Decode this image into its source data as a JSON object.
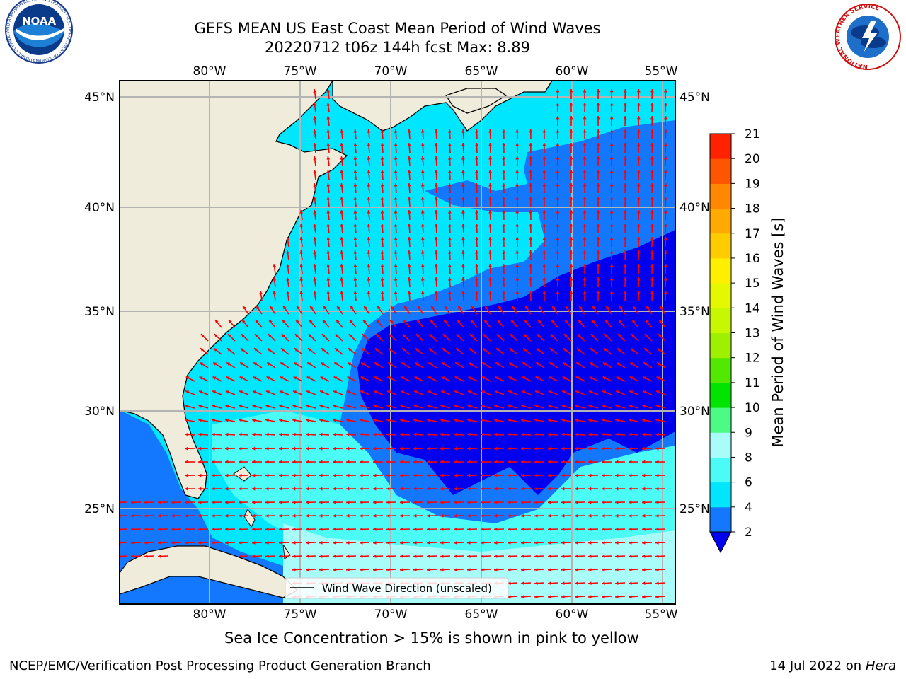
{
  "header": {
    "title_line1": "GEFS MEAN US East Coast Mean Period of Wind Waves",
    "title_line2": "20220712 t06z 144h fcst   Max: 8.89"
  },
  "logos": {
    "noaa_text": "NOAA",
    "noaa_ring": "NATIONAL OCEANIC AND ATMOSPHERIC ADMINISTRATION · U.S. DEPARTMENT OF COMMERCE",
    "nws_ring": "NATIONAL WEATHER SERVICE"
  },
  "map": {
    "lon_labels": [
      "80°W",
      "75°W",
      "70°W",
      "65°W",
      "60°W",
      "55°W"
    ],
    "lat_labels": [
      "45°N",
      "40°N",
      "35°N",
      "30°N",
      "25°N"
    ],
    "colors": {
      "land": "#efecdc",
      "c_lt2": "#0000ee",
      "c_2_4": "#1478ff",
      "c_4_6": "#00e6ff",
      "c_6_8": "#4bfcf6",
      "c_8_9": "#a8fdfb",
      "arrow": "#ff0000",
      "grid": "#b4b4b4"
    },
    "legend_label": "Wind Wave Direction (unscaled)"
  },
  "colorbar": {
    "ticks": [
      "2",
      "4",
      "6",
      "8",
      "9",
      "10",
      "11",
      "12",
      "13",
      "14",
      "15",
      "16",
      "17",
      "18",
      "19",
      "20",
      "21"
    ],
    "colors": [
      "#1478ff",
      "#00e6ff",
      "#4bfcf6",
      "#a8fdfb",
      "#4cfb83",
      "#00e400",
      "#52e800",
      "#9ef000",
      "#c8f800",
      "#e4f800",
      "#fff000",
      "#ffcc00",
      "#ffaa00",
      "#ff8800",
      "#ff5500",
      "#ff2200",
      "#ff0000"
    ],
    "under_color": "#0000ee",
    "title": "Mean Period of Wind Waves [s]"
  },
  "note": "Sea Ice Concentration > 15% is shown in pink to yellow",
  "footer": {
    "left": "NCEP/EMC/Verification Post Processing Product Generation Branch",
    "date": "14 Jul 2022 on ",
    "machine": "Hera"
  }
}
